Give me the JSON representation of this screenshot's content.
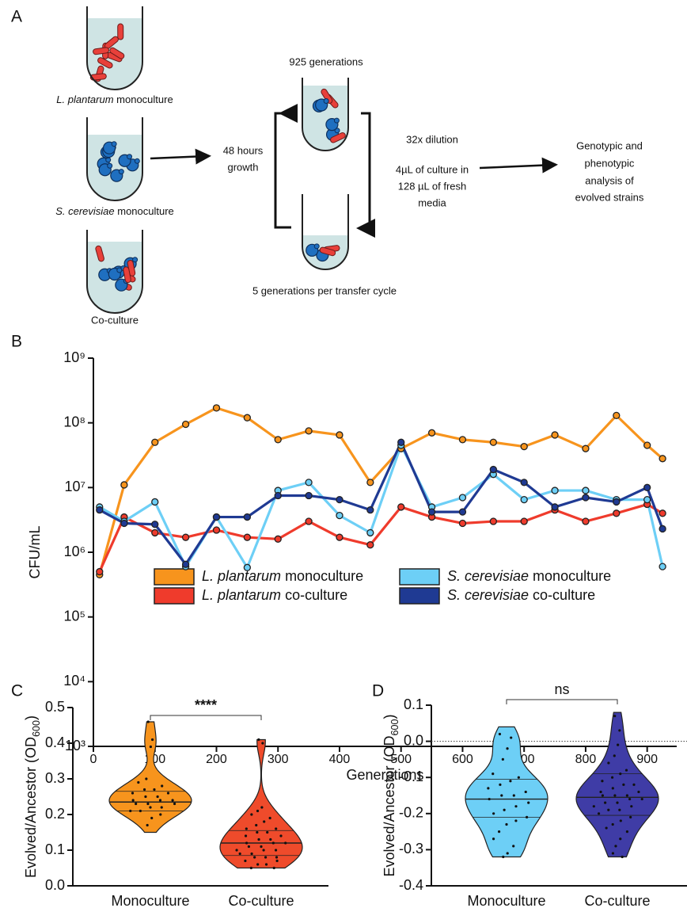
{
  "diagram": {
    "panel_label": "A",
    "tube_labels": [
      "L. plantarum monoculture",
      "S. cerevisiae monoculture",
      "Co-culture"
    ],
    "growth_label": [
      "48 hours",
      "growth"
    ],
    "top_label": "925 generations",
    "bottom_label": "5 generations per transfer cycle",
    "dilution_label": [
      "32x dilution",
      "",
      "4µL of culture in",
      "128 µL of fresh",
      "media"
    ],
    "result_label": [
      "Genotypic and",
      "phenotypic",
      "analysis of",
      "evolved strains"
    ]
  },
  "chart_data": [
    {
      "type": "line",
      "panel_label": "B",
      "xlabel": "Generations",
      "ylabel": "CFU/mL",
      "x": [
        10,
        50,
        100,
        150,
        200,
        250,
        300,
        350,
        400,
        450,
        500,
        550,
        600,
        650,
        700,
        750,
        800,
        850,
        900,
        925
      ],
      "xlim": [
        0,
        948
      ],
      "xticks": [
        0,
        100,
        200,
        300,
        400,
        500,
        600,
        700,
        800,
        900
      ],
      "ylim": [
        1000,
        1000000000
      ],
      "log_y": true,
      "yticks": [
        {
          "value": 1000,
          "label": "10³"
        },
        {
          "value": 10000,
          "label": "10⁴"
        },
        {
          "value": 100000,
          "label": "10⁵"
        },
        {
          "value": 1000000,
          "label": "10⁶"
        },
        {
          "value": 10000000,
          "label": "10⁷"
        },
        {
          "value": 100000000,
          "label": "10⁸"
        },
        {
          "value": 1000000000,
          "label": "10⁹"
        }
      ],
      "series": [
        {
          "name": "L. plantarum monoculture",
          "color": "#f7941d",
          "values": [
            450000,
            11000000,
            50000000,
            95000000,
            170000000,
            120000000,
            55000000,
            75000000,
            65000000,
            12000000,
            40000000,
            70000000,
            55000000,
            50000000,
            43000000,
            65000000,
            40000000,
            130000000,
            45000000,
            28000000
          ]
        },
        {
          "name": "L. plantarum co-culture",
          "color": "#ef3b2c",
          "values": [
            500000,
            3500000,
            2000000,
            1700000,
            2200000,
            1700000,
            1600000,
            3000000,
            1700000,
            1300000,
            5000000,
            3500000,
            2800000,
            3000000,
            3000000,
            4500000,
            3000000,
            4000000,
            5500000,
            4000000
          ]
        },
        {
          "name": "S. cerevisiae monoculture",
          "color": "#6dcff6",
          "values": [
            5000000,
            3000000,
            6000000,
            600000,
            3500000,
            580000,
            9000000,
            12000000,
            3700000,
            2000000,
            45000000,
            5000000,
            7000000,
            16000000,
            6500000,
            9000000,
            9000000,
            6500000,
            6500000,
            600000
          ]
        },
        {
          "name": "S. cerevisiae co-culture",
          "color": "#1f3a93",
          "values": [
            4500000,
            2800000,
            2700000,
            650000,
            3500000,
            3500000,
            7500000,
            7500000,
            6500000,
            4500000,
            50000000,
            4200000,
            4200000,
            19000000,
            12000000,
            5000000,
            7000000,
            6000000,
            10000000,
            2300000
          ]
        }
      ]
    },
    {
      "type": "violin",
      "panel_label": "C",
      "ylabel": "Evolved/Ancestor (OD600)",
      "annotation": "****",
      "categories": [
        "Monoculture",
        "Co-culture"
      ],
      "ylim": [
        0,
        0.5
      ],
      "yticks": [
        {
          "value": 0,
          "label": "0.0"
        },
        0.1,
        0.2,
        0.3,
        0.4,
        0.5
      ],
      "violins": [
        {
          "color": "#f7941d",
          "min": 0.15,
          "max": 0.46,
          "median": 0.235,
          "quartiles": [
            0.21,
            0.265
          ],
          "values": [
            0.46,
            0.41,
            0.39,
            0.3,
            0.29,
            0.28,
            0.27,
            0.27,
            0.26,
            0.26,
            0.25,
            0.25,
            0.24,
            0.24,
            0.24,
            0.23,
            0.23,
            0.23,
            0.22,
            0.22,
            0.21,
            0.21,
            0.2,
            0.19,
            0.17
          ]
        },
        {
          "color": "#ef4b2b",
          "min": 0.05,
          "max": 0.41,
          "median": 0.12,
          "quartiles": [
            0.085,
            0.155
          ],
          "values": [
            0.41,
            0.4,
            0.22,
            0.21,
            0.2,
            0.19,
            0.18,
            0.17,
            0.16,
            0.16,
            0.15,
            0.15,
            0.14,
            0.14,
            0.13,
            0.13,
            0.12,
            0.12,
            0.12,
            0.11,
            0.11,
            0.1,
            0.1,
            0.1,
            0.09,
            0.09,
            0.08,
            0.08,
            0.08,
            0.07,
            0.07,
            0.06,
            0.06,
            0.05,
            0.05
          ]
        }
      ]
    },
    {
      "type": "violin",
      "panel_label": "D",
      "ylabel": "Evolved/Ancestor (OD600)",
      "annotation": "ns",
      "categories": [
        "Monoculture",
        "Co-culture"
      ],
      "ref_line": 0,
      "ylim": [
        -0.4,
        0.1
      ],
      "yticks": [
        -0.4,
        -0.3,
        -0.2,
        -0.1,
        {
          "value": 0,
          "label": "0.0"
        },
        0.1
      ],
      "violins": [
        {
          "color": "#6dcff6",
          "min": -0.32,
          "max": 0.04,
          "median": -0.16,
          "quartiles": [
            -0.21,
            -0.105
          ],
          "values": [
            0.02,
            0.01,
            -0.02,
            -0.05,
            -0.09,
            -0.1,
            -0.11,
            -0.12,
            -0.13,
            -0.14,
            -0.15,
            -0.15,
            -0.16,
            -0.17,
            -0.18,
            -0.19,
            -0.2,
            -0.21,
            -0.22,
            -0.23,
            -0.25,
            -0.27,
            -0.29,
            -0.31,
            -0.32
          ]
        },
        {
          "color": "#3f3ca6",
          "min": -0.32,
          "max": 0.08,
          "median": -0.155,
          "quartiles": [
            -0.205,
            -0.09
          ],
          "values": [
            0.07,
            0.03,
            -0.01,
            -0.04,
            -0.06,
            -0.08,
            -0.09,
            -0.1,
            -0.11,
            -0.12,
            -0.12,
            -0.13,
            -0.14,
            -0.14,
            -0.15,
            -0.15,
            -0.15,
            -0.16,
            -0.16,
            -0.17,
            -0.17,
            -0.18,
            -0.18,
            -0.19,
            -0.19,
            -0.2,
            -0.21,
            -0.22,
            -0.23,
            -0.24,
            -0.25,
            -0.27,
            -0.29,
            -0.31,
            -0.32
          ]
        }
      ]
    }
  ]
}
